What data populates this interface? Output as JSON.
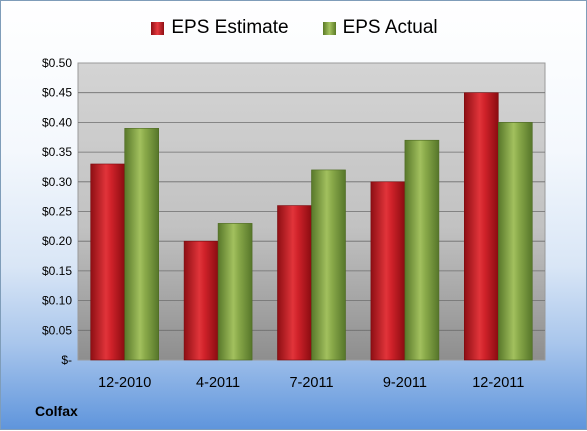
{
  "chart_data": {
    "type": "bar",
    "categories": [
      "12-2010",
      "4-2011",
      "7-2011",
      "9-2011",
      "12-2011"
    ],
    "series": [
      {
        "name": "EPS Estimate",
        "values": [
          0.33,
          0.2,
          0.26,
          0.3,
          0.45
        ],
        "color": "#d0222a"
      },
      {
        "name": "EPS Actual",
        "values": [
          0.39,
          0.23,
          0.32,
          0.37,
          0.4
        ],
        "color": "#8aaa4a"
      }
    ],
    "ylim": [
      0,
      0.5
    ],
    "yticks": [
      {
        "value": 0.0,
        "label": "$-"
      },
      {
        "value": 0.05,
        "label": "$0.05"
      },
      {
        "value": 0.1,
        "label": "$0.10"
      },
      {
        "value": 0.15,
        "label": "$0.15"
      },
      {
        "value": 0.2,
        "label": "$0.20"
      },
      {
        "value": 0.25,
        "label": "$0.25"
      },
      {
        "value": 0.3,
        "label": "$0.30"
      },
      {
        "value": 0.35,
        "label": "$0.35"
      },
      {
        "value": 0.4,
        "label": "$0.40"
      },
      {
        "value": 0.45,
        "label": "$0.45"
      },
      {
        "value": 0.5,
        "label": "$0.50"
      }
    ],
    "grid": true,
    "legend_position": "top-center",
    "footer_label": "Colfax"
  }
}
